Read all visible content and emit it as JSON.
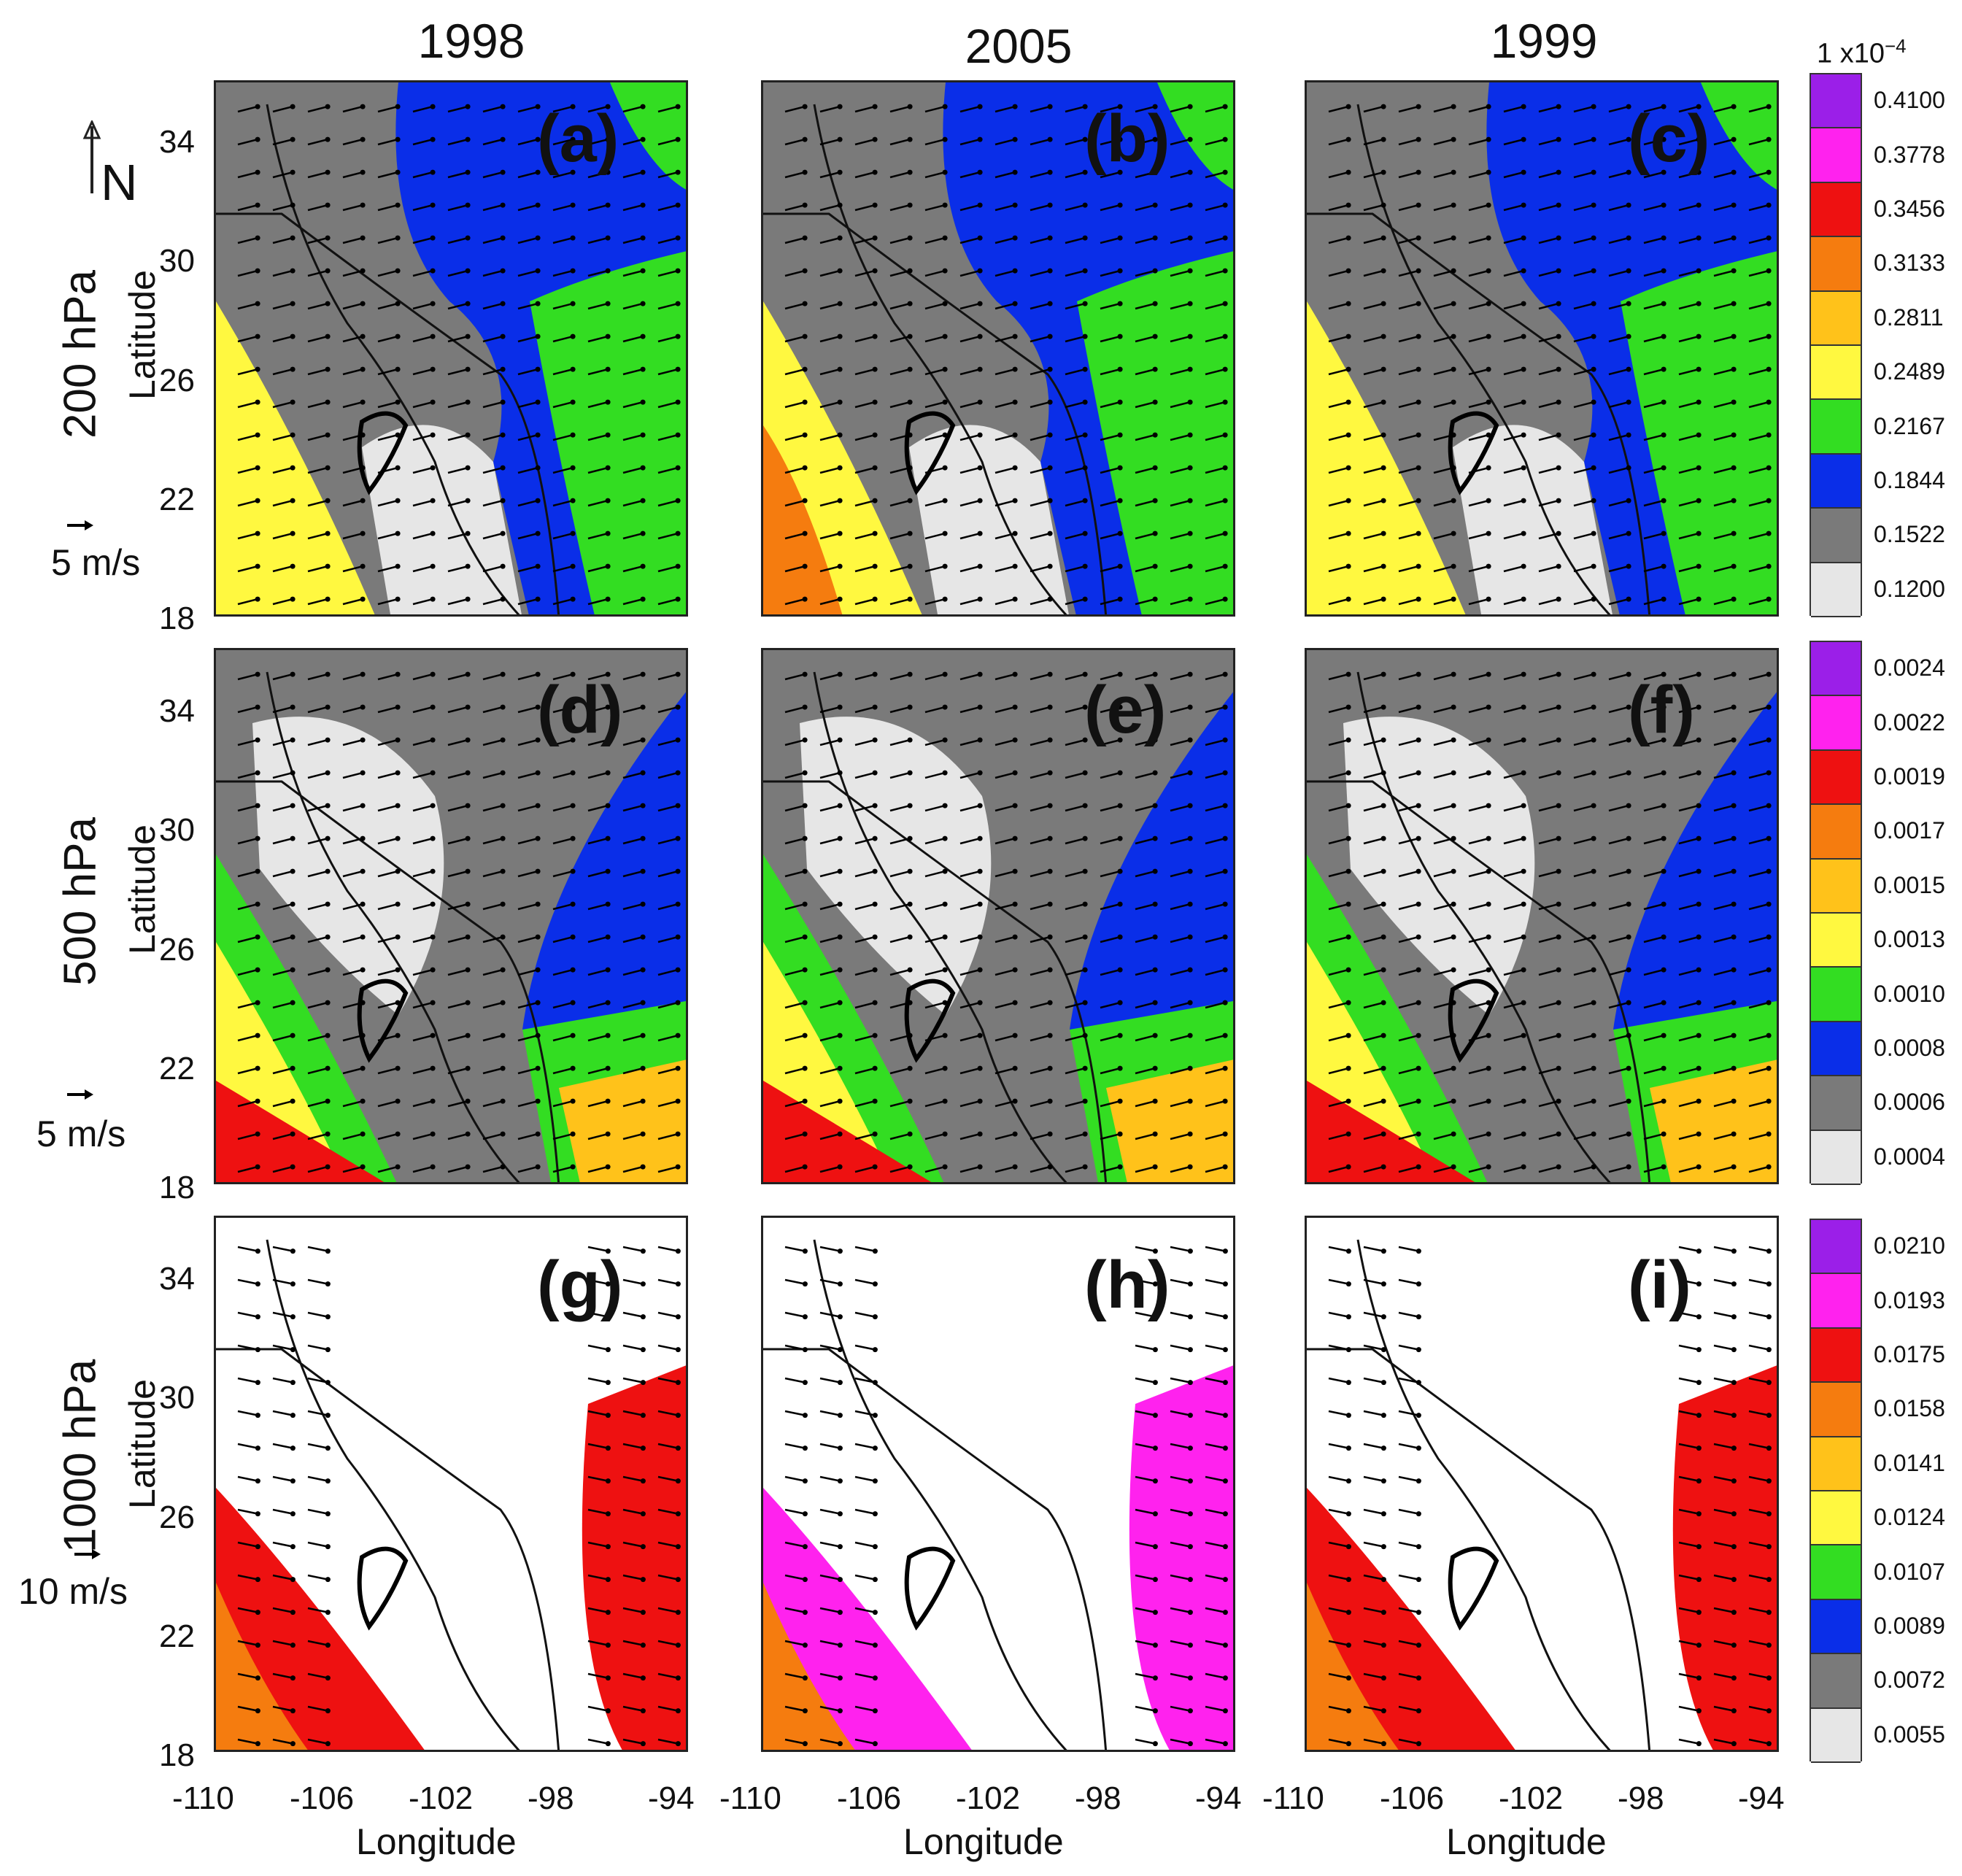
{
  "columns": [
    "1998",
    "2005",
    "1999"
  ],
  "rows": [
    {
      "pressure": "200 hPa",
      "axis": "Latitude",
      "scale_label": "5 m/s"
    },
    {
      "pressure": "500 hPa",
      "axis": "Latitude",
      "scale_label": "5 m/s"
    },
    {
      "pressure": "1000 hPa",
      "axis": "Latitude",
      "scale_label": "10 m/s"
    }
  ],
  "panel_letters": [
    "(a)",
    "(b)",
    "(c)",
    "(d)",
    "(e)",
    "(f)",
    "(g)",
    "(h)",
    "(i)"
  ],
  "lat_ticks": [
    "34",
    "30",
    "26",
    "22",
    "18"
  ],
  "lon_ticks": [
    "-110",
    "-106",
    "-102",
    "-98",
    "-94"
  ],
  "x_axis_title": "Longitude",
  "north_label": "N",
  "colorbar_multiplier": "1 x10",
  "colorbar_exponent": "−4",
  "colorbars": [
    [
      "0.4100",
      "0.3778",
      "0.3456",
      "0.3133",
      "0.2811",
      "0.2489",
      "0.2167",
      "0.1844",
      "0.1522",
      "0.1200"
    ],
    [
      "0.0024",
      "0.0022",
      "0.0019",
      "0.0017",
      "0.0015",
      "0.0013",
      "0.0010",
      "0.0008",
      "0.0006",
      "0.0004"
    ],
    [
      "0.0210",
      "0.0193",
      "0.0175",
      "0.0158",
      "0.0141",
      "0.0124",
      "0.0107",
      "0.0089",
      "0.0072",
      "0.0055"
    ]
  ],
  "palette": [
    "#9b1fe8",
    "#ff22ee",
    "#ee1111",
    "#f57c0f",
    "#ffc21a",
    "#fff840",
    "#33dd22",
    "#0a2ee8",
    "#7a7a7a",
    "#e6e6e6"
  ]
}
